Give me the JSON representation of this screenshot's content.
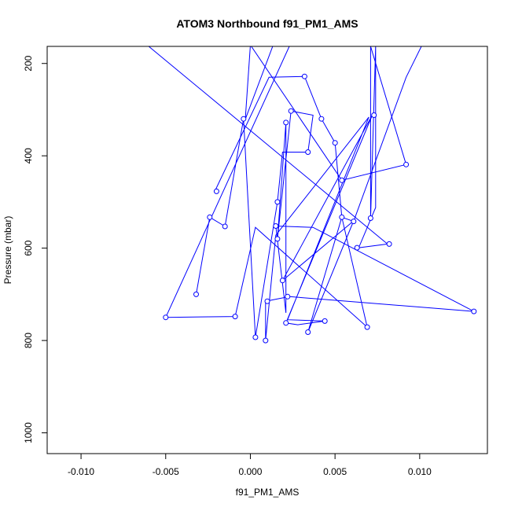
{
  "chart_data": {
    "type": "line",
    "title": "ATOM3 Northbound f91_PM1_AMS",
    "xlabel": "f91_PM1_AMS",
    "ylabel": "Pressure (mbar)",
    "xlim": [
      -0.012,
      0.014
    ],
    "ylim": [
      1045,
      163
    ],
    "y_inverted": true,
    "grid": false,
    "line_color": "#0000ff",
    "marker": "open-circle",
    "xticks": [
      {
        "value": -0.01,
        "label": "-0.010"
      },
      {
        "value": -0.005,
        "label": "-0.005"
      },
      {
        "value": 0.0,
        "label": "0.000"
      },
      {
        "value": 0.005,
        "label": "0.005"
      },
      {
        "value": 0.01,
        "label": "0.010"
      }
    ],
    "yticks": [
      {
        "value": 200,
        "label": "200"
      },
      {
        "value": 400,
        "label": "400"
      },
      {
        "value": 600,
        "label": "600"
      },
      {
        "value": 800,
        "label": "800"
      },
      {
        "value": 1000,
        "label": "1000"
      }
    ],
    "series": [
      {
        "points": [
          {
            "x": -0.006,
            "y": 163
          },
          {
            "x": 0.0081,
            "y": 591
          },
          {
            "x": 0.0064,
            "y": 599
          },
          {
            "x": 0.0074,
            "y": 512
          },
          {
            "x": 0.0074,
            "y": 163
          },
          {
            "x": 0.0071,
            "y": 535
          },
          {
            "x": 0.0071,
            "y": 163
          },
          {
            "x": 0.0092,
            "y": 419
          },
          {
            "x": 0.0054,
            "y": 453
          },
          {
            "x": 0.0,
            "y": 160
          },
          {
            "x": -0.0003,
            "y": 321
          },
          {
            "x": 0.0014,
            "y": 155
          },
          {
            "x": 0.0011,
            "y": 140
          },
          {
            "x": 0.0055,
            "y": 100
          }
        ]
      },
      {
        "points": [
          {
            "x": -0.0021,
            "y": 477
          },
          {
            "x": 0.0011,
            "y": 230
          },
          {
            "x": 0.0032,
            "y": 228
          },
          {
            "x": 0.0042,
            "y": 320
          },
          {
            "x": 0.005,
            "y": 372
          },
          {
            "x": 0.0054,
            "y": 533
          },
          {
            "x": 0.0061,
            "y": 542
          },
          {
            "x": 0.0092,
            "y": 230
          },
          {
            "x": 0.0101,
            "y": 163
          }
        ]
      },
      {
        "points": [
          {
            "x": -0.0032,
            "y": 700
          },
          {
            "x": -0.0024,
            "y": 533
          },
          {
            "x": -0.0015,
            "y": 553
          },
          {
            "x": -0.0004,
            "y": 320
          },
          {
            "x": 0.0003,
            "y": 793
          },
          {
            "x": 0.0016,
            "y": 500
          },
          {
            "x": 0.0019,
            "y": 392
          },
          {
            "x": 0.0034,
            "y": 392
          },
          {
            "x": 0.0037,
            "y": 312
          },
          {
            "x": 0.0024,
            "y": 303
          },
          {
            "x": 0.0016,
            "y": 580
          },
          {
            "x": 0.0021,
            "y": 328
          },
          {
            "x": 0.0021,
            "y": 740
          },
          {
            "x": 0.0015,
            "y": 552
          },
          {
            "x": 0.0037,
            "y": 555
          },
          {
            "x": 0.0132,
            "y": 737
          },
          {
            "x": 0.0023,
            "y": 705
          },
          {
            "x": 0.0009,
            "y": 715
          },
          {
            "x": 0.0009,
            "y": 800
          },
          {
            "x": 0.0015,
            "y": 572
          },
          {
            "x": 0.007,
            "y": 316
          },
          {
            "x": 0.0022,
            "y": 755
          },
          {
            "x": 0.0044,
            "y": 758
          },
          {
            "x": 0.0028,
            "y": 766
          },
          {
            "x": 0.0021,
            "y": 762
          },
          {
            "x": 0.0072,
            "y": 312
          },
          {
            "x": 0.0019,
            "y": 670
          },
          {
            "x": 0.0061,
            "y": 541
          },
          {
            "x": 0.0034,
            "y": 782
          },
          {
            "x": 0.0054,
            "y": 533
          },
          {
            "x": 0.0069,
            "y": 771
          },
          {
            "x": 0.0003,
            "y": 555
          },
          {
            "x": -0.0009,
            "y": 748
          },
          {
            "x": -0.005,
            "y": 750
          },
          {
            "x": 0.0023,
            "y": 163
          }
        ]
      }
    ],
    "markers": [
      {
        "x": 0.0032,
        "y": 228
      },
      {
        "x": 0.0024,
        "y": 303
      },
      {
        "x": 0.0073,
        "y": 312
      },
      {
        "x": -0.0004,
        "y": 320
      },
      {
        "x": 0.0042,
        "y": 320
      },
      {
        "x": 0.0021,
        "y": 328
      },
      {
        "x": 0.005,
        "y": 372
      },
      {
        "x": 0.0034,
        "y": 392
      },
      {
        "x": 0.0092,
        "y": 419
      },
      {
        "x": 0.0054,
        "y": 453
      },
      {
        "x": -0.002,
        "y": 477
      },
      {
        "x": 0.0016,
        "y": 500
      },
      {
        "x": -0.0024,
        "y": 533
      },
      {
        "x": 0.0054,
        "y": 533
      },
      {
        "x": 0.0071,
        "y": 535
      },
      {
        "x": 0.0061,
        "y": 542
      },
      {
        "x": 0.0015,
        "y": 552
      },
      {
        "x": -0.0015,
        "y": 553
      },
      {
        "x": 0.0016,
        "y": 580
      },
      {
        "x": 0.0082,
        "y": 591
      },
      {
        "x": 0.0063,
        "y": 599
      },
      {
        "x": 0.0019,
        "y": 670
      },
      {
        "x": -0.0032,
        "y": 700
      },
      {
        "x": 0.0022,
        "y": 705
      },
      {
        "x": 0.001,
        "y": 715
      },
      {
        "x": 0.0132,
        "y": 737
      },
      {
        "x": -0.0009,
        "y": 748
      },
      {
        "x": -0.005,
        "y": 750
      },
      {
        "x": 0.0044,
        "y": 758
      },
      {
        "x": 0.0021,
        "y": 762
      },
      {
        "x": 0.0069,
        "y": 771
      },
      {
        "x": 0.0034,
        "y": 782
      },
      {
        "x": 0.0003,
        "y": 793
      },
      {
        "x": 0.0009,
        "y": 800
      }
    ]
  }
}
